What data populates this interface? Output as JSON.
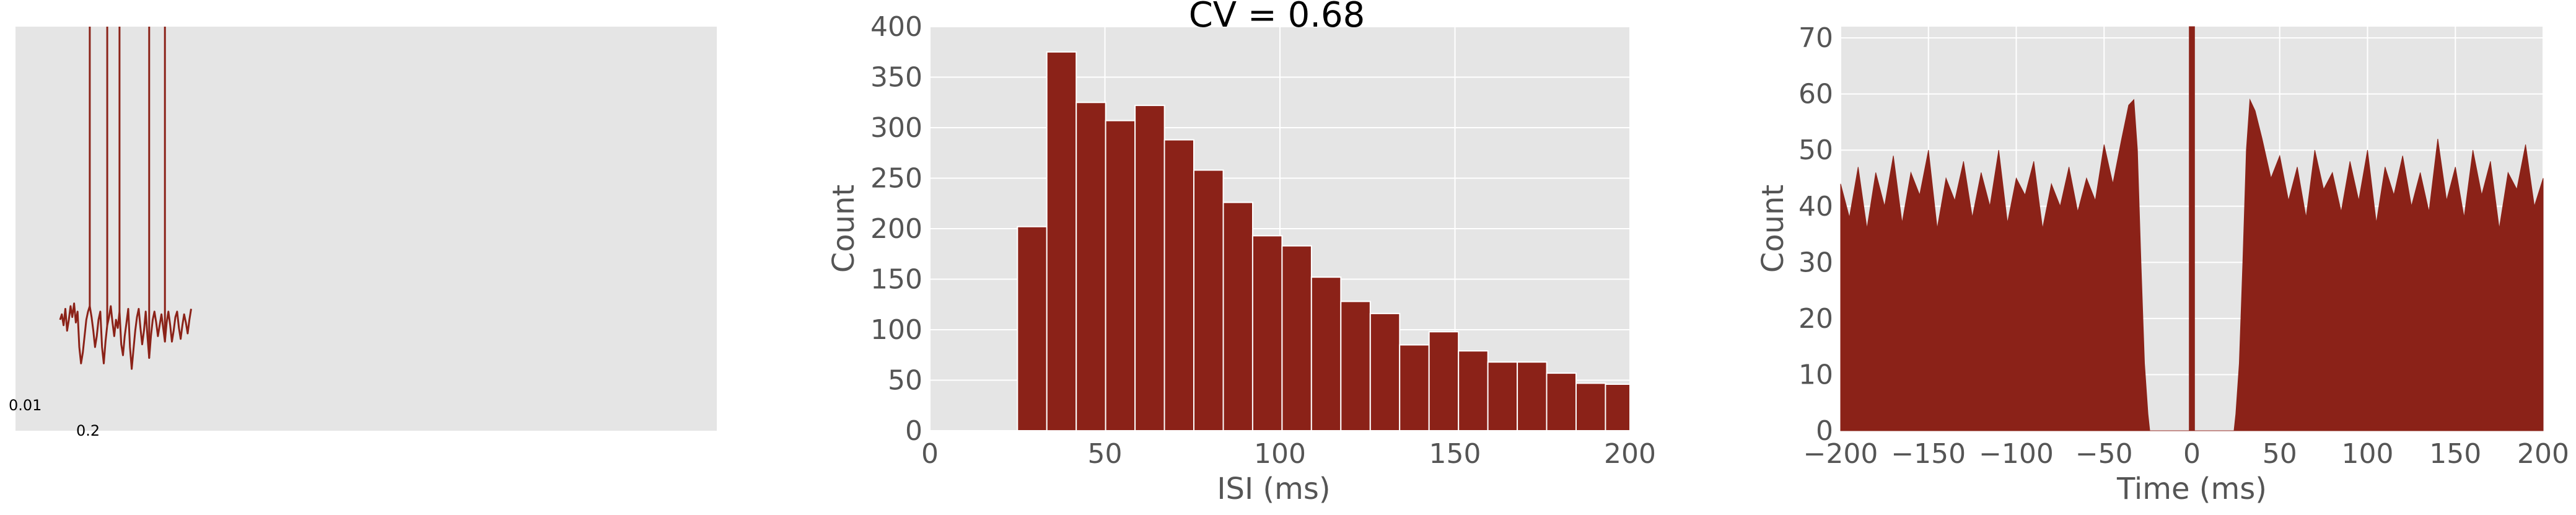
{
  "colors": {
    "mark": "#8b2218",
    "panel_bg": "#e5e5e5",
    "grid": "#ffffff",
    "tick_text": "#555555"
  },
  "chart_data": [
    {
      "type": "line",
      "description_role": "voltage trace",
      "scalebar": {
        "vertical_label": "0.01",
        "horizontal_label": "0.2"
      },
      "x_range": [
        0,
        2.0
      ],
      "y_range": [
        -0.065,
        0.04
      ],
      "trace": {
        "x": [
          0.0,
          0.01,
          0.02,
          0.03,
          0.04,
          0.05,
          0.06,
          0.07,
          0.08,
          0.09,
          0.1,
          0.11,
          0.12,
          0.13,
          0.14,
          0.15,
          0.16,
          0.17,
          0.18,
          0.19,
          0.2,
          0.21,
          0.22,
          0.23,
          0.24,
          0.25,
          0.26,
          0.27,
          0.28,
          0.29,
          0.3,
          0.31,
          0.32,
          0.33,
          0.34,
          0.35,
          0.36,
          0.37,
          0.38,
          0.39,
          0.4,
          0.41,
          0.42,
          0.43,
          0.44,
          0.45,
          0.46,
          0.47,
          0.48,
          0.49,
          0.5,
          0.51,
          0.52,
          0.53,
          0.54,
          0.55,
          0.56,
          0.57,
          0.58,
          0.59,
          0.6,
          0.61,
          0.62,
          0.63,
          0.64,
          0.65,
          0.66,
          0.67,
          0.68,
          0.69,
          0.7,
          0.71,
          0.72,
          0.73,
          0.74,
          0.75
        ],
        "y": [
          -0.03,
          -0.028,
          -0.032,
          -0.026,
          -0.034,
          -0.03,
          -0.025,
          -0.029,
          -0.024,
          -0.031,
          -0.027,
          -0.04,
          -0.046,
          -0.042,
          -0.036,
          -0.03,
          -0.027,
          -0.025,
          -0.029,
          -0.034,
          -0.04,
          -0.036,
          -0.03,
          -0.027,
          -0.04,
          -0.046,
          -0.038,
          -0.032,
          -0.029,
          -0.025,
          -0.031,
          -0.036,
          -0.03,
          -0.033,
          -0.027,
          -0.039,
          -0.043,
          -0.036,
          -0.031,
          -0.026,
          -0.04,
          -0.048,
          -0.041,
          -0.034,
          -0.029,
          -0.026,
          -0.033,
          -0.039,
          -0.034,
          -0.027,
          -0.036,
          -0.044,
          -0.036,
          -0.03,
          -0.027,
          -0.031,
          -0.036,
          -0.032,
          -0.028,
          -0.033,
          -0.038,
          -0.031,
          -0.027,
          -0.032,
          -0.038,
          -0.034,
          -0.029,
          -0.027,
          -0.033,
          -0.037,
          -0.032,
          -0.028,
          -0.031,
          -0.035,
          -0.03,
          -0.026
        ]
      },
      "spikes_x": [
        0.17,
        0.27,
        0.34,
        0.51,
        0.6
      ]
    },
    {
      "type": "bar",
      "title": "CV = 0.68",
      "xlabel": "ISI (ms)",
      "ylabel": "Count",
      "xlim": [
        0,
        200
      ],
      "ylim": [
        0,
        400
      ],
      "xticks": [
        0,
        50,
        100,
        150,
        200
      ],
      "yticks": [
        0,
        50,
        100,
        150,
        200,
        250,
        300,
        350,
        400
      ],
      "grid": true,
      "bin_edges": [
        25,
        33.4,
        41.8,
        50.2,
        58.6,
        67.0,
        75.4,
        83.8,
        92.2,
        100.6,
        109.0,
        117.4,
        125.8,
        134.2,
        142.6,
        151.0,
        159.4,
        167.8,
        176.2,
        184.6,
        193.0,
        201.4
      ],
      "values": [
        202,
        375,
        325,
        307,
        322,
        288,
        258,
        226,
        193,
        183,
        152,
        128,
        116,
        85,
        98,
        79,
        68,
        68,
        57,
        47,
        46
      ]
    },
    {
      "type": "area",
      "xlabel": "Time (ms)",
      "ylabel": "Count",
      "xlim": [
        -200,
        200
      ],
      "ylim": [
        0,
        72
      ],
      "xticks": [
        -200,
        -150,
        -100,
        -50,
        0,
        50,
        100,
        150,
        200
      ],
      "yticks": [
        0,
        10,
        20,
        30,
        40,
        50,
        60,
        70
      ],
      "grid": true,
      "profile": {
        "x": [
          -200,
          -195,
          -190,
          -185,
          -180,
          -175,
          -170,
          -165,
          -160,
          -155,
          -150,
          -145,
          -140,
          -135,
          -130,
          -125,
          -120,
          -115,
          -110,
          -105,
          -100,
          -95,
          -90,
          -85,
          -80,
          -75,
          -70,
          -65,
          -60,
          -55,
          -50,
          -45,
          -40,
          -36,
          -33,
          -31,
          -29,
          -27,
          -25,
          -24,
          -2,
          -1.5,
          -1.5,
          1.5,
          1.5,
          2,
          24,
          25,
          27,
          29,
          31,
          33,
          36,
          40,
          45,
          50,
          55,
          60,
          65,
          70,
          75,
          80,
          85,
          90,
          95,
          100,
          105,
          110,
          115,
          120,
          125,
          130,
          135,
          140,
          145,
          150,
          155,
          160,
          165,
          170,
          175,
          180,
          185,
          190,
          195,
          200
        ],
        "y": [
          44,
          38,
          47,
          36,
          46,
          40,
          49,
          37,
          46,
          42,
          50,
          36,
          45,
          41,
          48,
          38,
          46,
          40,
          50,
          37,
          45,
          42,
          48,
          36,
          44,
          40,
          47,
          39,
          45,
          41,
          51,
          44,
          52,
          58,
          59,
          50,
          30,
          12,
          3,
          0,
          0,
          0,
          74,
          74,
          0,
          0,
          0,
          3,
          12,
          30,
          50,
          59,
          57,
          52,
          45,
          49,
          41,
          47,
          38,
          50,
          43,
          46,
          39,
          48,
          41,
          50,
          37,
          47,
          42,
          49,
          40,
          46,
          39,
          52,
          41,
          47,
          38,
          50,
          42,
          48,
          36,
          46,
          43,
          51,
          40,
          45
        ]
      }
    }
  ]
}
